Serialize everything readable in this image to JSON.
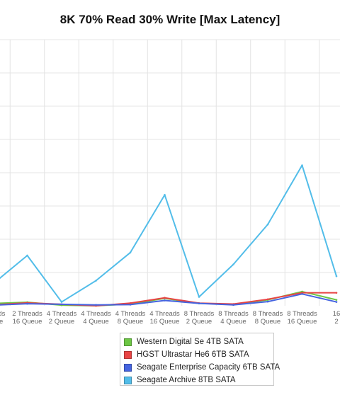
{
  "chart_data": {
    "type": "line",
    "title": "8K 70% Read 30% Write [Max Latency]",
    "xlabel": "",
    "ylabel": "",
    "grid": true,
    "legend_position": "bottom",
    "categories": [
      "Threads|Queue",
      "2 Threads|16 Queue",
      "4 Threads|2 Queue",
      "4 Threads|4 Queue",
      "4 Threads|8 Queue",
      "4 Threads|16 Queue",
      "8 Threads|2 Queue",
      "8 Threads|4 Queue",
      "8 Threads|8 Queue",
      "8 Threads|16 Queue",
      "16|2"
    ],
    "ylim": [
      0,
      9
    ],
    "series": [
      {
        "name": "Western Digital Se 4TB SATA",
        "color": "#6cc644",
        "values": [
          0.08,
          0.12,
          0.02,
          0.0,
          0.06,
          0.25,
          0.08,
          0.05,
          0.2,
          0.48,
          0.2
        ]
      },
      {
        "name": "HGST Ultrastar He6 6TB SATA",
        "color": "#e84444",
        "values": [
          0.03,
          0.1,
          0.05,
          0.0,
          0.09,
          0.27,
          0.09,
          0.06,
          0.22,
          0.44,
          0.44
        ]
      },
      {
        "name": "Seagate Enterprise Capacity 6TB SATA",
        "color": "#4564e0",
        "values": [
          0.02,
          0.07,
          0.05,
          0.03,
          0.04,
          0.18,
          0.08,
          0.03,
          0.14,
          0.4,
          0.13
        ]
      },
      {
        "name": "Seagate Archive 8TB SATA",
        "color": "#52bde9",
        "values": [
          0.74,
          1.7,
          0.13,
          0.85,
          1.8,
          3.75,
          0.3,
          1.4,
          2.75,
          4.75,
          1.0
        ]
      }
    ]
  }
}
